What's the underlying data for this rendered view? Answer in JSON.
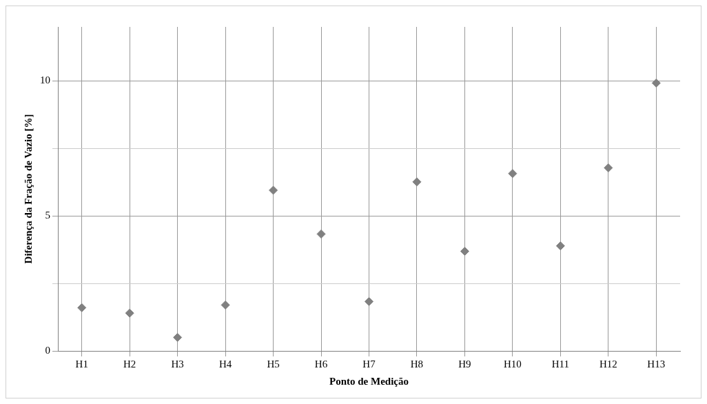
{
  "chart_data": {
    "type": "scatter",
    "xlabel": "Ponto de Medição",
    "ylabel": "Diferença da Fração de Vazio [%]",
    "categories": [
      "H1",
      "H2",
      "H3",
      "H4",
      "H5",
      "H6",
      "H7",
      "H8",
      "H9",
      "H10",
      "H11",
      "H12",
      "H13"
    ],
    "values": [
      1.6,
      1.4,
      0.5,
      1.7,
      5.95,
      4.33,
      1.83,
      6.26,
      3.69,
      6.57,
      3.89,
      6.78,
      9.92
    ],
    "color": "#808080",
    "marker": "diamond",
    "grid": true,
    "ylim": [
      0,
      12
    ],
    "yticks": [
      0,
      {
        "value": 2.5,
        "label": null
      },
      5,
      {
        "value": 7.5,
        "label": null
      },
      10
    ]
  }
}
